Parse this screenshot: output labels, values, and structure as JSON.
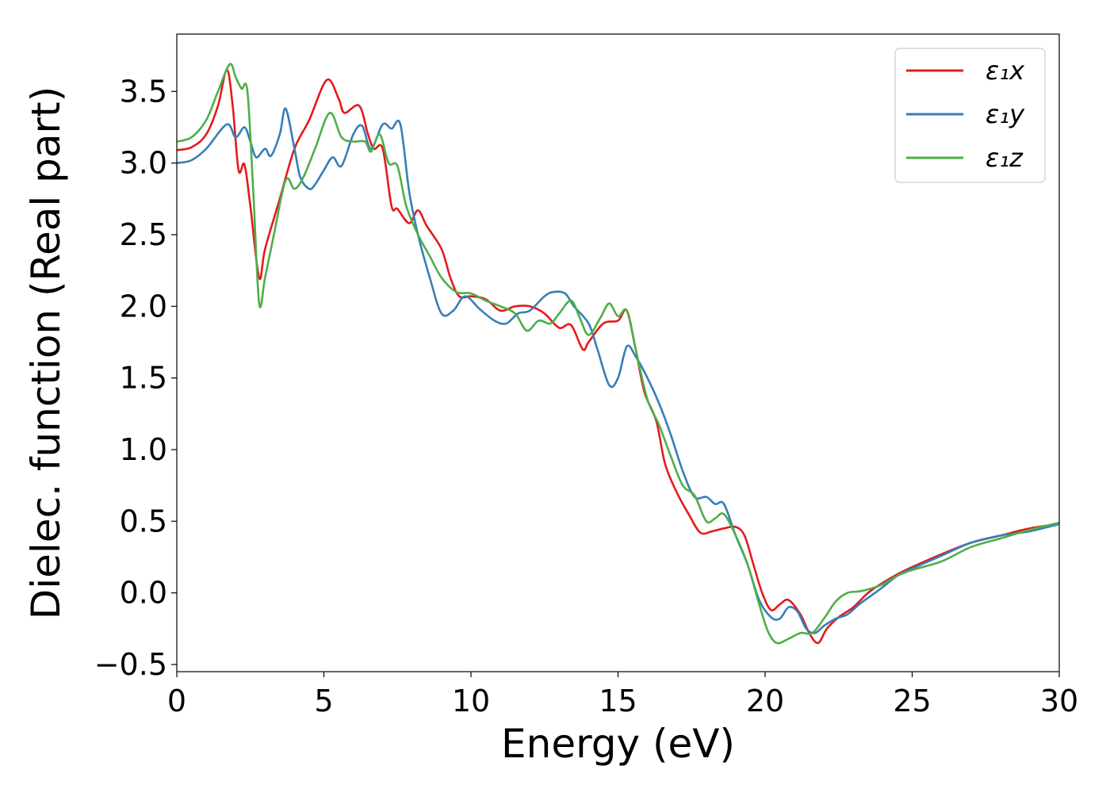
{
  "chart_data": {
    "type": "line",
    "xlabel": "Energy (eV)",
    "ylabel": "Dielec. function (Real part)",
    "xlim": [
      0,
      30
    ],
    "ylim": [
      -0.55,
      3.9
    ],
    "xticks": [
      0,
      5,
      10,
      15,
      20,
      25,
      30
    ],
    "xtick_labels": [
      "0",
      "5",
      "10",
      "15",
      "20",
      "25",
      "30"
    ],
    "yticks": [
      -0.5,
      0.0,
      0.5,
      1.0,
      1.5,
      2.0,
      2.5,
      3.0,
      3.5
    ],
    "ytick_labels": [
      "−0.5",
      "0.0",
      "0.5",
      "1.0",
      "1.5",
      "2.0",
      "2.5",
      "3.0",
      "3.5"
    ],
    "grid": false,
    "legend_position": "top-right",
    "series": [
      {
        "name": "ε₁x",
        "color": "#e41a1c",
        "points": [
          [
            0,
            3.09
          ],
          [
            0.5,
            3.11
          ],
          [
            1.0,
            3.2
          ],
          [
            1.4,
            3.4
          ],
          [
            1.7,
            3.65
          ],
          [
            1.9,
            3.4
          ],
          [
            2.1,
            2.95
          ],
          [
            2.3,
            2.99
          ],
          [
            2.5,
            2.7
          ],
          [
            2.8,
            2.2
          ],
          [
            3.0,
            2.4
          ],
          [
            3.5,
            2.75
          ],
          [
            4.0,
            3.1
          ],
          [
            4.5,
            3.3
          ],
          [
            5.1,
            3.58
          ],
          [
            5.5,
            3.45
          ],
          [
            5.7,
            3.35
          ],
          [
            6.2,
            3.4
          ],
          [
            6.5,
            3.2
          ],
          [
            6.7,
            3.1
          ],
          [
            7.0,
            3.1
          ],
          [
            7.3,
            2.7
          ],
          [
            7.5,
            2.68
          ],
          [
            7.9,
            2.58
          ],
          [
            8.2,
            2.67
          ],
          [
            8.5,
            2.56
          ],
          [
            9.0,
            2.4
          ],
          [
            9.3,
            2.2
          ],
          [
            9.6,
            2.07
          ],
          [
            10.0,
            2.07
          ],
          [
            10.5,
            2.05
          ],
          [
            11.0,
            1.97
          ],
          [
            11.5,
            2.0
          ],
          [
            12.0,
            2.0
          ],
          [
            12.5,
            1.95
          ],
          [
            13.0,
            1.85
          ],
          [
            13.4,
            1.87
          ],
          [
            13.8,
            1.7
          ],
          [
            14.0,
            1.75
          ],
          [
            14.5,
            1.88
          ],
          [
            15.0,
            1.9
          ],
          [
            15.3,
            1.97
          ],
          [
            15.6,
            1.7
          ],
          [
            15.9,
            1.4
          ],
          [
            16.3,
            1.2
          ],
          [
            16.6,
            0.9
          ],
          [
            17.0,
            0.7
          ],
          [
            17.4,
            0.55
          ],
          [
            17.8,
            0.42
          ],
          [
            18.2,
            0.43
          ],
          [
            18.6,
            0.45
          ],
          [
            19.0,
            0.46
          ],
          [
            19.3,
            0.4
          ],
          [
            19.6,
            0.2
          ],
          [
            19.9,
            0.0
          ],
          [
            20.2,
            -0.12
          ],
          [
            20.5,
            -0.08
          ],
          [
            20.8,
            -0.05
          ],
          [
            21.2,
            -0.15
          ],
          [
            21.5,
            -0.28
          ],
          [
            21.8,
            -0.35
          ],
          [
            22.1,
            -0.25
          ],
          [
            22.5,
            -0.17
          ],
          [
            23.0,
            -0.1
          ],
          [
            23.5,
            0.0
          ],
          [
            24.0,
            0.07
          ],
          [
            24.5,
            0.13
          ],
          [
            25.0,
            0.18
          ],
          [
            26.0,
            0.27
          ],
          [
            27.0,
            0.35
          ],
          [
            28.0,
            0.4
          ],
          [
            29.0,
            0.45
          ],
          [
            30.0,
            0.48
          ]
        ]
      },
      {
        "name": "ε₁y",
        "color": "#377eb8",
        "points": [
          [
            0,
            3.0
          ],
          [
            0.5,
            3.02
          ],
          [
            1.0,
            3.1
          ],
          [
            1.7,
            3.27
          ],
          [
            2.0,
            3.18
          ],
          [
            2.3,
            3.25
          ],
          [
            2.5,
            3.15
          ],
          [
            2.7,
            3.04
          ],
          [
            3.0,
            3.1
          ],
          [
            3.2,
            3.05
          ],
          [
            3.5,
            3.2
          ],
          [
            3.7,
            3.38
          ],
          [
            4.0,
            3.1
          ],
          [
            4.2,
            2.9
          ],
          [
            4.5,
            2.82
          ],
          [
            4.7,
            2.85
          ],
          [
            5.0,
            2.95
          ],
          [
            5.3,
            3.04
          ],
          [
            5.6,
            2.98
          ],
          [
            6.0,
            3.2
          ],
          [
            6.3,
            3.26
          ],
          [
            6.6,
            3.1
          ],
          [
            7.0,
            3.27
          ],
          [
            7.3,
            3.24
          ],
          [
            7.6,
            3.27
          ],
          [
            7.9,
            2.8
          ],
          [
            8.2,
            2.5
          ],
          [
            8.6,
            2.2
          ],
          [
            9.0,
            1.95
          ],
          [
            9.4,
            1.97
          ],
          [
            9.8,
            2.07
          ],
          [
            10.3,
            1.98
          ],
          [
            10.8,
            1.9
          ],
          [
            11.2,
            1.88
          ],
          [
            11.6,
            1.95
          ],
          [
            12.0,
            1.97
          ],
          [
            12.5,
            2.07
          ],
          [
            12.8,
            2.1
          ],
          [
            13.2,
            2.09
          ],
          [
            13.5,
            2.0
          ],
          [
            14.0,
            1.88
          ],
          [
            14.3,
            1.7
          ],
          [
            14.7,
            1.45
          ],
          [
            15.0,
            1.5
          ],
          [
            15.3,
            1.72
          ],
          [
            15.6,
            1.65
          ],
          [
            16.0,
            1.5
          ],
          [
            16.4,
            1.32
          ],
          [
            16.8,
            1.1
          ],
          [
            17.2,
            0.85
          ],
          [
            17.6,
            0.67
          ],
          [
            18.0,
            0.67
          ],
          [
            18.3,
            0.62
          ],
          [
            18.6,
            0.62
          ],
          [
            19.0,
            0.4
          ],
          [
            19.4,
            0.2
          ],
          [
            19.8,
            -0.05
          ],
          [
            20.2,
            -0.17
          ],
          [
            20.5,
            -0.18
          ],
          [
            20.8,
            -0.1
          ],
          [
            21.1,
            -0.13
          ],
          [
            21.4,
            -0.25
          ],
          [
            21.7,
            -0.28
          ],
          [
            22.0,
            -0.23
          ],
          [
            22.4,
            -0.18
          ],
          [
            22.8,
            -0.15
          ],
          [
            23.2,
            -0.08
          ],
          [
            23.6,
            -0.02
          ],
          [
            24.0,
            0.04
          ],
          [
            24.5,
            0.12
          ],
          [
            25.0,
            0.17
          ],
          [
            26.0,
            0.26
          ],
          [
            27.0,
            0.35
          ],
          [
            28.0,
            0.4
          ],
          [
            29.0,
            0.43
          ],
          [
            30.0,
            0.48
          ]
        ]
      },
      {
        "name": "ε₁z",
        "color": "#4daf4a",
        "points": [
          [
            0,
            3.15
          ],
          [
            0.5,
            3.18
          ],
          [
            1.0,
            3.3
          ],
          [
            1.4,
            3.5
          ],
          [
            1.8,
            3.69
          ],
          [
            2.0,
            3.6
          ],
          [
            2.2,
            3.52
          ],
          [
            2.4,
            3.5
          ],
          [
            2.6,
            2.8
          ],
          [
            2.8,
            2.02
          ],
          [
            3.0,
            2.2
          ],
          [
            3.3,
            2.5
          ],
          [
            3.7,
            2.88
          ],
          [
            4.0,
            2.82
          ],
          [
            4.3,
            2.9
          ],
          [
            4.7,
            3.1
          ],
          [
            5.2,
            3.35
          ],
          [
            5.6,
            3.18
          ],
          [
            6.0,
            3.15
          ],
          [
            6.4,
            3.15
          ],
          [
            6.6,
            3.08
          ],
          [
            6.9,
            3.2
          ],
          [
            7.2,
            3.0
          ],
          [
            7.5,
            2.98
          ],
          [
            7.8,
            2.7
          ],
          [
            8.2,
            2.5
          ],
          [
            8.6,
            2.35
          ],
          [
            9.0,
            2.2
          ],
          [
            9.5,
            2.1
          ],
          [
            10.0,
            2.09
          ],
          [
            10.5,
            2.04
          ],
          [
            11.0,
            2.0
          ],
          [
            11.5,
            1.95
          ],
          [
            11.9,
            1.83
          ],
          [
            12.3,
            1.9
          ],
          [
            12.7,
            1.88
          ],
          [
            13.0,
            1.95
          ],
          [
            13.4,
            2.04
          ],
          [
            13.7,
            1.92
          ],
          [
            14.0,
            1.8
          ],
          [
            14.4,
            1.92
          ],
          [
            14.7,
            2.02
          ],
          [
            15.0,
            1.93
          ],
          [
            15.3,
            1.97
          ],
          [
            15.6,
            1.7
          ],
          [
            16.0,
            1.35
          ],
          [
            16.4,
            1.17
          ],
          [
            16.8,
            0.95
          ],
          [
            17.2,
            0.75
          ],
          [
            17.6,
            0.68
          ],
          [
            18.0,
            0.5
          ],
          [
            18.3,
            0.52
          ],
          [
            18.6,
            0.55
          ],
          [
            19.0,
            0.4
          ],
          [
            19.4,
            0.2
          ],
          [
            19.8,
            -0.08
          ],
          [
            20.1,
            -0.27
          ],
          [
            20.4,
            -0.35
          ],
          [
            20.8,
            -0.32
          ],
          [
            21.2,
            -0.28
          ],
          [
            21.6,
            -0.28
          ],
          [
            22.0,
            -0.18
          ],
          [
            22.4,
            -0.06
          ],
          [
            22.8,
            0.0
          ],
          [
            23.2,
            0.01
          ],
          [
            23.6,
            0.03
          ],
          [
            24.0,
            0.06
          ],
          [
            24.5,
            0.12
          ],
          [
            25.0,
            0.16
          ],
          [
            26.0,
            0.22
          ],
          [
            27.0,
            0.32
          ],
          [
            28.0,
            0.38
          ],
          [
            29.0,
            0.44
          ],
          [
            30.0,
            0.49
          ]
        ]
      }
    ]
  }
}
